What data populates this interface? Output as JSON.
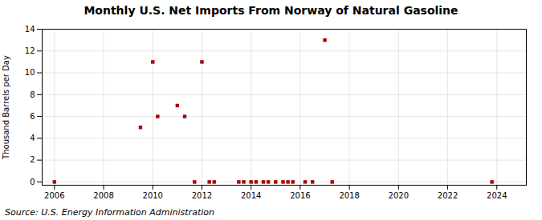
{
  "chart_data": {
    "type": "scatter",
    "title": "Monthly U.S. Net Imports From Norway of Natural Gasoline",
    "ylabel": "Thousand Barrels per Day",
    "source": "Source: U.S. Energy Information Administration",
    "x": [
      2006.0,
      2009.5,
      2010.0,
      2010.2,
      2011.0,
      2011.3,
      2012.0,
      2011.7,
      2012.3,
      2012.5,
      2013.5,
      2013.7,
      2014.0,
      2014.2,
      2014.5,
      2014.7,
      2015.0,
      2015.3,
      2015.5,
      2015.7,
      2016.2,
      2016.5,
      2017.0,
      2017.3,
      2023.8
    ],
    "values": [
      0,
      5,
      11,
      6,
      7,
      6,
      11,
      0,
      0,
      0,
      0,
      0,
      0,
      0,
      0,
      0,
      0,
      0,
      0,
      0,
      0,
      0,
      13,
      0,
      0
    ],
    "color": "#aa0000",
    "marker": "square",
    "xlim": [
      2005.5,
      2025.2
    ],
    "ylim": [
      -0.3,
      14
    ],
    "xticks": [
      2006,
      2008,
      2010,
      2012,
      2014,
      2016,
      2018,
      2020,
      2022,
      2024
    ],
    "yticks": [
      0,
      2,
      4,
      6,
      8,
      10,
      12,
      14
    ],
    "grid": true
  }
}
